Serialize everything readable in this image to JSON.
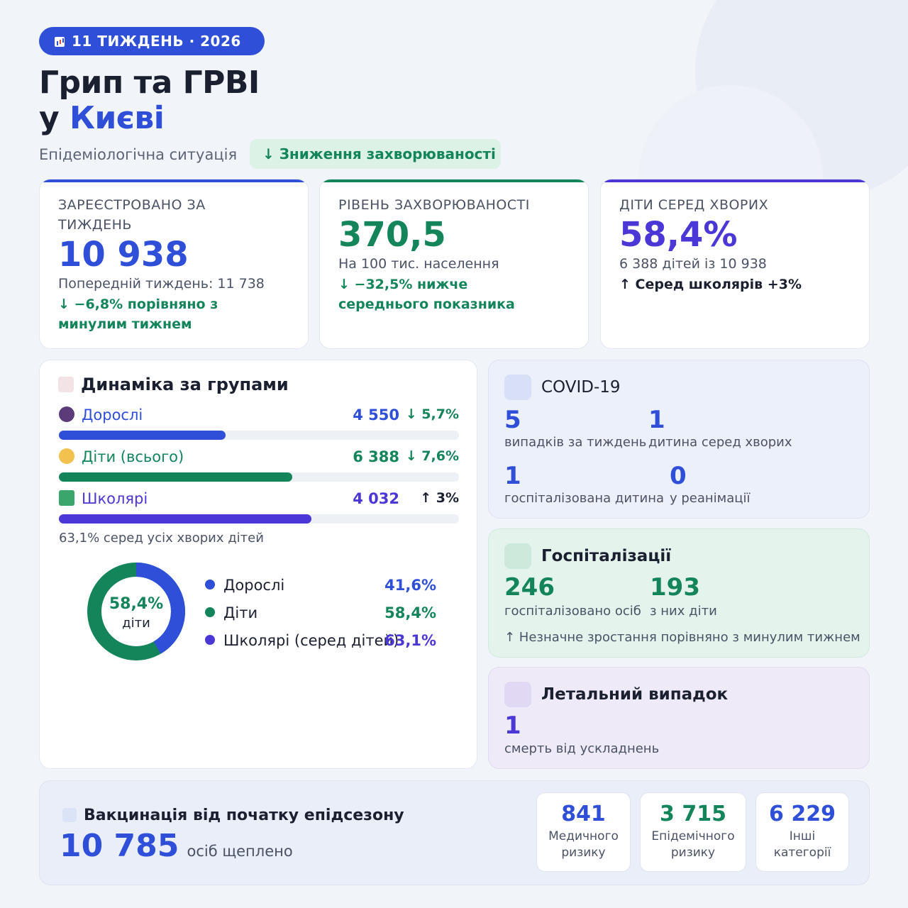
{
  "header": {
    "badge": "11 ТИЖДЕНЬ · 2026",
    "title_line1": "Грип та ГРВІ",
    "title_prefix": "у",
    "title_city": "Києві",
    "subtitle": "Епідеміологічна ситуація",
    "trend_pill": "↓ Зниження захворюваності"
  },
  "stats": [
    {
      "label": "ЗАРЕЄСТРОВАНО ЗА ТИЖДЕНЬ",
      "value": "10 938",
      "sub": "Попередній тиждень: 11 738",
      "trend": "↓ −6,8% порівняно з минулим тижнем"
    },
    {
      "label": "РІВЕНЬ ЗАХВОРЮВАНОСТІ",
      "value": "370,5",
      "sub": "На 100 тис. населення",
      "trend": "↓ −32,5% нижче середнього показника"
    },
    {
      "label": "ДІТИ СЕРЕД ХВОРИХ",
      "value": "58,4%",
      "sub": "6 388 дітей із 10 938",
      "trend": "↑ Серед школярів +3%"
    }
  ],
  "dynamics": {
    "title": "Динаміка за групами",
    "groups": [
      {
        "name": "Дорослі",
        "value": "4 550",
        "change": "↓ 5,7%",
        "share": 0.416
      },
      {
        "name": "Діти (всього)",
        "value": "6 388",
        "change": "↓ 7,6%",
        "share": 0.584
      },
      {
        "name": "Школярі",
        "value": "4 032",
        "change": "↑ 3%",
        "share": 0.631
      }
    ],
    "schoolers_note": "63,1% серед усіх хворих дітей",
    "donut": {
      "center_value": "58,4%",
      "center_label": "діти",
      "children_share": 0.584
    },
    "legend": [
      {
        "name": "Дорослі",
        "pct": "41,6%",
        "color": "#2f4fd8"
      },
      {
        "name": "Діти",
        "pct": "58,4%",
        "color": "#14855a"
      },
      {
        "name": "Школярі (серед дітей)",
        "pct": "63,1%",
        "color": "#4b37d6"
      }
    ]
  },
  "covid": {
    "title": "COVID-19",
    "items": [
      {
        "value": "5",
        "label": "випадків за тиждень"
      },
      {
        "value": "1",
        "label": "дитина серед хворих"
      },
      {
        "value": "1",
        "label": "госпіталізована дитина"
      },
      {
        "value": "0",
        "label": "у реанімації"
      }
    ]
  },
  "hospital": {
    "title": "Госпіталізації",
    "items": [
      {
        "value": "246",
        "label": "госпіталізовано осіб"
      },
      {
        "value": "193",
        "label": "з них діти"
      }
    ],
    "note": "↑ Незначне зростання порівняно з минулим тижнем"
  },
  "death": {
    "title": "Летальний випадок",
    "value": "1",
    "label": "смерть від ускладнень"
  },
  "vaccination": {
    "title": "Вакцинація від початку епідсезону",
    "value": "10 785",
    "unit": "осіб щеплено",
    "boxes": [
      {
        "value": "841",
        "label1": "Медичного",
        "label2": "ризику"
      },
      {
        "value": "3 715",
        "label1": "Епідемічного",
        "label2": "ризику"
      },
      {
        "value": "6 229",
        "label1": "Інші",
        "label2": "категорії"
      }
    ]
  },
  "colors": {
    "blue": "#2f4fd8",
    "green": "#14855a",
    "purple": "#4b37d6"
  }
}
